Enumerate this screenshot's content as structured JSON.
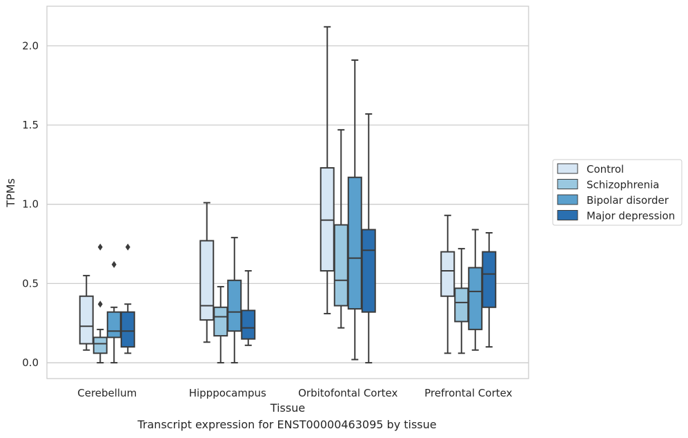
{
  "chart_data": {
    "type": "box",
    "xlabel": "Tissue",
    "ylabel": "TPMs",
    "caption": "Transcript expression for ENST00000463095 by tissue",
    "ylim": [
      -0.1,
      2.25
    ],
    "yticks": [
      "0.0",
      "0.5",
      "1.0",
      "1.5",
      "2.0"
    ],
    "grid": "horizontal",
    "legend_position": "right",
    "categories": [
      "Cerebellum",
      "Hipppocampus",
      "Orbitofontal Cortex",
      "Prefrontal Cortex"
    ],
    "series": [
      {
        "name": "Control",
        "color": "#d6e6f4",
        "boxes": [
          {
            "whislo": 0.08,
            "q1": 0.12,
            "med": 0.23,
            "q3": 0.42,
            "whishi": 0.55,
            "fliers": []
          },
          {
            "whislo": 0.13,
            "q1": 0.27,
            "med": 0.36,
            "q3": 0.77,
            "whishi": 1.01,
            "fliers": []
          },
          {
            "whislo": 0.31,
            "q1": 0.58,
            "med": 0.9,
            "q3": 1.23,
            "whishi": 2.12,
            "fliers": []
          },
          {
            "whislo": 0.06,
            "q1": 0.42,
            "med": 0.58,
            "q3": 0.7,
            "whishi": 0.93,
            "fliers": []
          }
        ]
      },
      {
        "name": "Schizophrenia",
        "color": "#9ac8e0",
        "boxes": [
          {
            "whislo": 0.0,
            "q1": 0.06,
            "med": 0.12,
            "q3": 0.16,
            "whishi": 0.21,
            "fliers": [
              0.37,
              0.73
            ]
          },
          {
            "whislo": 0.0,
            "q1": 0.17,
            "med": 0.29,
            "q3": 0.35,
            "whishi": 0.48,
            "fliers": []
          },
          {
            "whislo": 0.22,
            "q1": 0.36,
            "med": 0.52,
            "q3": 0.87,
            "whishi": 1.47,
            "fliers": []
          },
          {
            "whislo": 0.06,
            "q1": 0.26,
            "med": 0.38,
            "q3": 0.47,
            "whishi": 0.72,
            "fliers": []
          }
        ]
      },
      {
        "name": "Bipolar disorder",
        "color": "#5aa0cd",
        "boxes": [
          {
            "whislo": 0.0,
            "q1": 0.16,
            "med": 0.2,
            "q3": 0.32,
            "whishi": 0.35,
            "fliers": [
              0.62
            ]
          },
          {
            "whislo": 0.0,
            "q1": 0.2,
            "med": 0.32,
            "q3": 0.52,
            "whishi": 0.79,
            "fliers": []
          },
          {
            "whislo": 0.02,
            "q1": 0.34,
            "med": 0.66,
            "q3": 1.17,
            "whishi": 1.91,
            "fliers": []
          },
          {
            "whislo": 0.08,
            "q1": 0.21,
            "med": 0.45,
            "q3": 0.6,
            "whishi": 0.84,
            "fliers": []
          }
        ]
      },
      {
        "name": "Major depression",
        "color": "#2a6fb0",
        "boxes": [
          {
            "whislo": 0.06,
            "q1": 0.1,
            "med": 0.2,
            "q3": 0.32,
            "whishi": 0.37,
            "fliers": [
              0.73
            ]
          },
          {
            "whislo": 0.11,
            "q1": 0.15,
            "med": 0.22,
            "q3": 0.33,
            "whishi": 0.58,
            "fliers": []
          },
          {
            "whislo": 0.0,
            "q1": 0.32,
            "med": 0.71,
            "q3": 0.84,
            "whishi": 1.57,
            "fliers": []
          },
          {
            "whislo": 0.1,
            "q1": 0.35,
            "med": 0.56,
            "q3": 0.7,
            "whishi": 0.82,
            "fliers": []
          }
        ]
      }
    ]
  }
}
